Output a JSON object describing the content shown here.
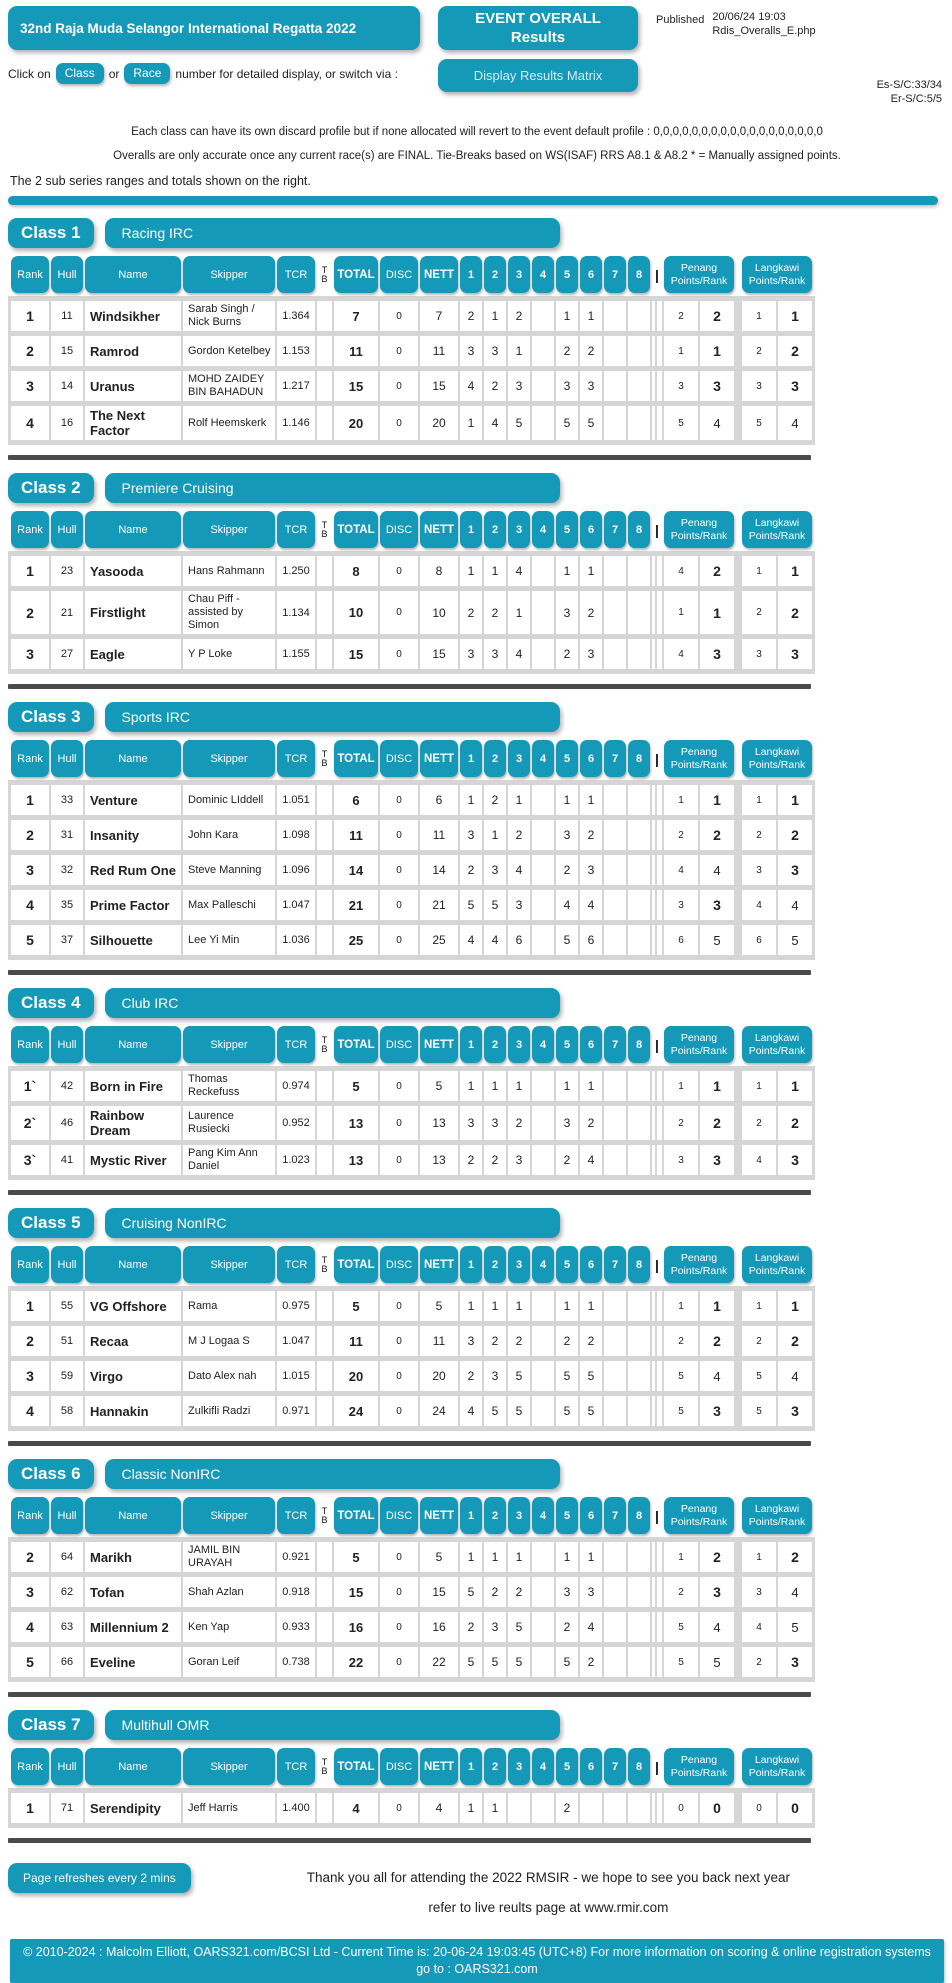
{
  "colors": {
    "accent": "#1499B8",
    "table_bg": "#D6D6D6",
    "divider": "#4A4A4A"
  },
  "header": {
    "title": "32nd Raja Muda Selangor International Regatta 2022",
    "event_button_line1": "EVENT OVERALL",
    "event_button_line2": "Results",
    "published_label": "Published",
    "published_time": "20/06/24 19:03",
    "published_file": "Rdis_Overalls_E.php",
    "click_prefix": "Click on",
    "class_button": "Class",
    "or_text": "or",
    "race_button": "Race",
    "click_suffix": "number for detailed display, or switch via  :",
    "matrix_button": "Display Results Matrix",
    "es_sc": "Es-S/C:33/34",
    "er_sc": "Er-S/C:5/5",
    "info_line1": "Each class can have its own discard profile but if none allocated will revert to the event default profile : 0,0,0,0,0,0,0,0,0,0,0,0,0,0,0,0,0,0",
    "info_line2": "Overalls are only accurate once any current race(s) are FINAL.    Tie-Breaks based on WS(ISAF) RRS A8.1 & A8.2       * = Manually assigned points.",
    "subseries_note": "The 2 sub series ranges and totals shown on the right."
  },
  "table_headers": {
    "rank": "Rank",
    "hull": "Hull",
    "name": "Name",
    "skipper": "Skipper",
    "tcr": "TCR",
    "tb_top": "T",
    "tb_bottom": "B",
    "total": "TOTAL",
    "disc": "DISC",
    "nett": "NETT",
    "races": [
      "1",
      "2",
      "3",
      "4",
      "5",
      "6",
      "7",
      "8"
    ],
    "bar": "|",
    "penang_line1": "Penang",
    "penang_line2": "Points/Rank",
    "langkawi_line1": "Langkawi",
    "langkawi_line2": "Points/Rank"
  },
  "classes": [
    {
      "label": "Class 1",
      "name": "Racing IRC",
      "rows": [
        {
          "rank": "1",
          "hull": "11",
          "name": "Windsikher",
          "skipper": "Sarab Singh / Nick Burns",
          "tcr": "1.364",
          "total": "7",
          "disc": "0",
          "nett": "7",
          "races": [
            "2",
            "1",
            "2",
            "",
            "1",
            "1",
            "",
            ""
          ],
          "penang_pts": "2",
          "penang_rank": "2",
          "langkawi_pts": "1",
          "langkawi_rank": "1"
        },
        {
          "rank": "2",
          "hull": "15",
          "name": "Ramrod",
          "skipper": "Gordon Ketelbey",
          "tcr": "1.153",
          "total": "11",
          "disc": "0",
          "nett": "11",
          "races": [
            "3",
            "3",
            "1",
            "",
            "2",
            "2",
            "",
            ""
          ],
          "penang_pts": "1",
          "penang_rank": "1",
          "langkawi_pts": "2",
          "langkawi_rank": "2"
        },
        {
          "rank": "3",
          "hull": "14",
          "name": "Uranus",
          "skipper": "MOHD ZAIDEY BIN BAHADUN",
          "tcr": "1.217",
          "total": "15",
          "disc": "0",
          "nett": "15",
          "races": [
            "4",
            "2",
            "3",
            "",
            "3",
            "3",
            "",
            ""
          ],
          "penang_pts": "3",
          "penang_rank": "3",
          "langkawi_pts": "3",
          "langkawi_rank": "3"
        },
        {
          "rank": "4",
          "hull": "16",
          "name": "The Next Factor",
          "skipper": "Rolf Heemskerk",
          "tcr": "1.146",
          "total": "20",
          "disc": "0",
          "nett": "20",
          "races": [
            "1",
            "4",
            "5",
            "",
            "5",
            "5",
            "",
            ""
          ],
          "penang_pts": "5",
          "penang_rank": "4",
          "langkawi_pts": "5",
          "langkawi_rank": "4"
        }
      ]
    },
    {
      "label": "Class 2",
      "name": "Premiere Cruising",
      "rows": [
        {
          "rank": "1",
          "hull": "23",
          "name": "Yasooda",
          "skipper": "Hans Rahmann",
          "tcr": "1.250",
          "total": "8",
          "disc": "0",
          "nett": "8",
          "races": [
            "1",
            "1",
            "4",
            "",
            "1",
            "1",
            "",
            ""
          ],
          "penang_pts": "4",
          "penang_rank": "2",
          "langkawi_pts": "1",
          "langkawi_rank": "1"
        },
        {
          "rank": "2",
          "hull": "21",
          "name": "Firstlight",
          "skipper": "Chau Piff - assisted by Simon",
          "tcr": "1.134",
          "total": "10",
          "disc": "0",
          "nett": "10",
          "races": [
            "2",
            "2",
            "1",
            "",
            "3",
            "2",
            "",
            ""
          ],
          "penang_pts": "1",
          "penang_rank": "1",
          "langkawi_pts": "2",
          "langkawi_rank": "2"
        },
        {
          "rank": "3",
          "hull": "27",
          "name": "Eagle",
          "skipper": "Y P Loke",
          "tcr": "1.155",
          "total": "15",
          "disc": "0",
          "nett": "15",
          "races": [
            "3",
            "3",
            "4",
            "",
            "2",
            "3",
            "",
            ""
          ],
          "penang_pts": "4",
          "penang_rank": "3",
          "langkawi_pts": "3",
          "langkawi_rank": "3"
        }
      ]
    },
    {
      "label": "Class 3",
      "name": "Sports IRC",
      "rows": [
        {
          "rank": "1",
          "hull": "33",
          "name": "Venture",
          "skipper": "Dominic LIddell",
          "tcr": "1.051",
          "total": "6",
          "disc": "0",
          "nett": "6",
          "races": [
            "1",
            "2",
            "1",
            "",
            "1",
            "1",
            "",
            ""
          ],
          "penang_pts": "1",
          "penang_rank": "1",
          "langkawi_pts": "1",
          "langkawi_rank": "1"
        },
        {
          "rank": "2",
          "hull": "31",
          "name": "Insanity",
          "skipper": "John Kara",
          "tcr": "1.098",
          "total": "11",
          "disc": "0",
          "nett": "11",
          "races": [
            "3",
            "1",
            "2",
            "",
            "3",
            "2",
            "",
            ""
          ],
          "penang_pts": "2",
          "penang_rank": "2",
          "langkawi_pts": "2",
          "langkawi_rank": "2"
        },
        {
          "rank": "3",
          "hull": "32",
          "name": "Red Rum One",
          "skipper": "Steve Manning",
          "tcr": "1.096",
          "total": "14",
          "disc": "0",
          "nett": "14",
          "races": [
            "2",
            "3",
            "4",
            "",
            "2",
            "3",
            "",
            ""
          ],
          "penang_pts": "4",
          "penang_rank": "4",
          "langkawi_pts": "3",
          "langkawi_rank": "3"
        },
        {
          "rank": "4",
          "hull": "35",
          "name": "Prime Factor",
          "skipper": "Max Palleschi",
          "tcr": "1.047",
          "total": "21",
          "disc": "0",
          "nett": "21",
          "races": [
            "5",
            "5",
            "3",
            "",
            "4",
            "4",
            "",
            ""
          ],
          "penang_pts": "3",
          "penang_rank": "3",
          "langkawi_pts": "4",
          "langkawi_rank": "4"
        },
        {
          "rank": "5",
          "hull": "37",
          "name": "Silhouette",
          "skipper": "Lee Yi Min",
          "tcr": "1.036",
          "total": "25",
          "disc": "0",
          "nett": "25",
          "races": [
            "4",
            "4",
            "6",
            "",
            "5",
            "6",
            "",
            ""
          ],
          "penang_pts": "6",
          "penang_rank": "5",
          "langkawi_pts": "6",
          "langkawi_rank": "5"
        }
      ]
    },
    {
      "label": "Class 4",
      "name": "Club IRC",
      "rows": [
        {
          "rank": "1`",
          "hull": "42",
          "name": "Born in Fire",
          "skipper": "Thomas Reckefuss",
          "tcr": "0.974",
          "total": "5",
          "disc": "0",
          "nett": "5",
          "races": [
            "1",
            "1",
            "1",
            "",
            "1",
            "1",
            "",
            ""
          ],
          "penang_pts": "1",
          "penang_rank": "1",
          "langkawi_pts": "1",
          "langkawi_rank": "1"
        },
        {
          "rank": "2`",
          "hull": "46",
          "name": "Rainbow Dream",
          "skipper": "Laurence Rusiecki",
          "tcr": "0.952",
          "total": "13",
          "disc": "0",
          "nett": "13",
          "races": [
            "3",
            "3",
            "2",
            "",
            "3",
            "2",
            "",
            ""
          ],
          "penang_pts": "2",
          "penang_rank": "2",
          "langkawi_pts": "2",
          "langkawi_rank": "2"
        },
        {
          "rank": "3`",
          "hull": "41",
          "name": "Mystic River",
          "skipper": "Pang Kim Ann Daniel",
          "tcr": "1.023",
          "total": "13",
          "disc": "0",
          "nett": "13",
          "races": [
            "2",
            "2",
            "3",
            "",
            "2",
            "4",
            "",
            ""
          ],
          "penang_pts": "3",
          "penang_rank": "3",
          "langkawi_pts": "4",
          "langkawi_rank": "3"
        }
      ]
    },
    {
      "label": "Class 5",
      "name": "Cruising NonIRC",
      "rows": [
        {
          "rank": "1",
          "hull": "55",
          "name": "VG Offshore",
          "skipper": "Rama",
          "tcr": "0.975",
          "total": "5",
          "disc": "0",
          "nett": "5",
          "races": [
            "1",
            "1",
            "1",
            "",
            "1",
            "1",
            "",
            ""
          ],
          "penang_pts": "1",
          "penang_rank": "1",
          "langkawi_pts": "1",
          "langkawi_rank": "1"
        },
        {
          "rank": "2",
          "hull": "51",
          "name": "Recaa",
          "skipper": "M J Logaa S",
          "tcr": "1.047",
          "total": "11",
          "disc": "0",
          "nett": "11",
          "races": [
            "3",
            "2",
            "2",
            "",
            "2",
            "2",
            "",
            ""
          ],
          "penang_pts": "2",
          "penang_rank": "2",
          "langkawi_pts": "2",
          "langkawi_rank": "2"
        },
        {
          "rank": "3",
          "hull": "59",
          "name": "Virgo",
          "skipper": "Dato Alex nah",
          "tcr": "1.015",
          "total": "20",
          "disc": "0",
          "nett": "20",
          "races": [
            "2",
            "3",
            "5",
            "",
            "5",
            "5",
            "",
            ""
          ],
          "penang_pts": "5",
          "penang_rank": "4",
          "langkawi_pts": "5",
          "langkawi_rank": "4"
        },
        {
          "rank": "4",
          "hull": "58",
          "name": "Hannakin",
          "skipper": "Zulkifli Radzi",
          "tcr": "0.971",
          "total": "24",
          "disc": "0",
          "nett": "24",
          "races": [
            "4",
            "5",
            "5",
            "",
            "5",
            "5",
            "",
            ""
          ],
          "penang_pts": "5",
          "penang_rank": "3",
          "langkawi_pts": "5",
          "langkawi_rank": "3"
        }
      ]
    },
    {
      "label": "Class 6",
      "name": "Classic NonIRC",
      "rows": [
        {
          "rank": "2",
          "hull": "64",
          "name": "Marikh",
          "skipper": "JAMIL BIN URAYAH",
          "tcr": "0.921",
          "total": "5",
          "disc": "0",
          "nett": "5",
          "races": [
            "1",
            "1",
            "1",
            "",
            "1",
            "1",
            "",
            ""
          ],
          "penang_pts": "1",
          "penang_rank": "2",
          "langkawi_pts": "1",
          "langkawi_rank": "2"
        },
        {
          "rank": "3",
          "hull": "62",
          "name": "Tofan",
          "skipper": "Shah Azlan",
          "tcr": "0.918",
          "total": "15",
          "disc": "0",
          "nett": "15",
          "races": [
            "5",
            "2",
            "2",
            "",
            "3",
            "3",
            "",
            ""
          ],
          "penang_pts": "2",
          "penang_rank": "3",
          "langkawi_pts": "3",
          "langkawi_rank": "4"
        },
        {
          "rank": "4",
          "hull": "63",
          "name": "Millennium 2",
          "skipper": "Ken Yap",
          "tcr": "0.933",
          "total": "16",
          "disc": "0",
          "nett": "16",
          "races": [
            "2",
            "3",
            "5",
            "",
            "2",
            "4",
            "",
            ""
          ],
          "penang_pts": "5",
          "penang_rank": "4",
          "langkawi_pts": "4",
          "langkawi_rank": "5"
        },
        {
          "rank": "5",
          "hull": "66",
          "name": "Eveline",
          "skipper": "Goran Leif",
          "tcr": "0.738",
          "total": "22",
          "disc": "0",
          "nett": "22",
          "races": [
            "5",
            "5",
            "5",
            "",
            "5",
            "2",
            "",
            ""
          ],
          "penang_pts": "5",
          "penang_rank": "5",
          "langkawi_pts": "2",
          "langkawi_rank": "3"
        }
      ]
    },
    {
      "label": "Class 7",
      "name": "Multihull OMR",
      "rows": [
        {
          "rank": "1",
          "hull": "71",
          "name": "Serendipity",
          "skipper": "Jeff Harris",
          "tcr": "1.400",
          "total": "4",
          "disc": "0",
          "nett": "4",
          "races": [
            "1",
            "1",
            "",
            "",
            "2",
            "",
            "",
            ""
          ],
          "penang_pts": "0",
          "penang_rank": "0",
          "langkawi_pts": "0",
          "langkawi_rank": "0"
        }
      ]
    }
  ],
  "footer": {
    "refresh_button": "Page refreshes every 2 mins",
    "thanks_line1": "Thank you all for attending the 2022 RMSIR - we hope to see you back next year",
    "thanks_line2": "refer to live reults page at www.rmir.com",
    "copyright": "© 2010-2024 : Malcolm Elliott, OARS321.com/BCSI Ltd - Current Time is: 20-06-24 19:03:45 (UTC+8)    For more information on scoring & online registration systems go to : OARS321.com"
  }
}
